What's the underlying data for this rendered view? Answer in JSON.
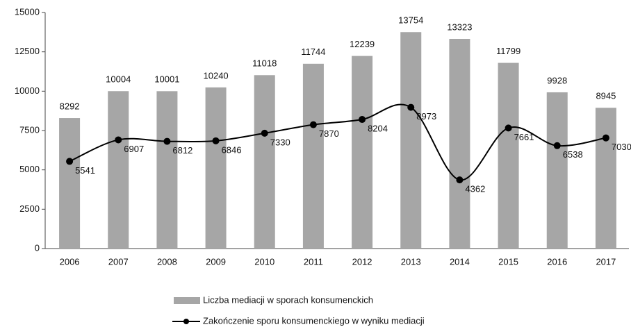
{
  "chart_data": {
    "type": "combo",
    "categories": [
      "2006",
      "2007",
      "2008",
      "2009",
      "2010",
      "2011",
      "2012",
      "2013",
      "2014",
      "2015",
      "2016",
      "2017"
    ],
    "series": [
      {
        "name": "Liczba mediacji w sporach konsumenckich",
        "type": "bar",
        "color": "#a6a6a6",
        "values": [
          8292,
          10004,
          10001,
          10240,
          11018,
          11744,
          12239,
          13754,
          13323,
          11799,
          9928,
          8945
        ]
      },
      {
        "name": "Zakończenie sporu konsumenckiego w wyniku mediacji",
        "type": "line",
        "color": "#000000",
        "values": [
          5541,
          6907,
          6812,
          6846,
          7330,
          7870,
          8204,
          8973,
          4362,
          7661,
          6538,
          7030
        ]
      }
    ],
    "ylim": [
      0,
      15000
    ],
    "yticks": [
      0,
      2500,
      5000,
      7500,
      10000,
      12500,
      15000
    ],
    "grid": false
  }
}
